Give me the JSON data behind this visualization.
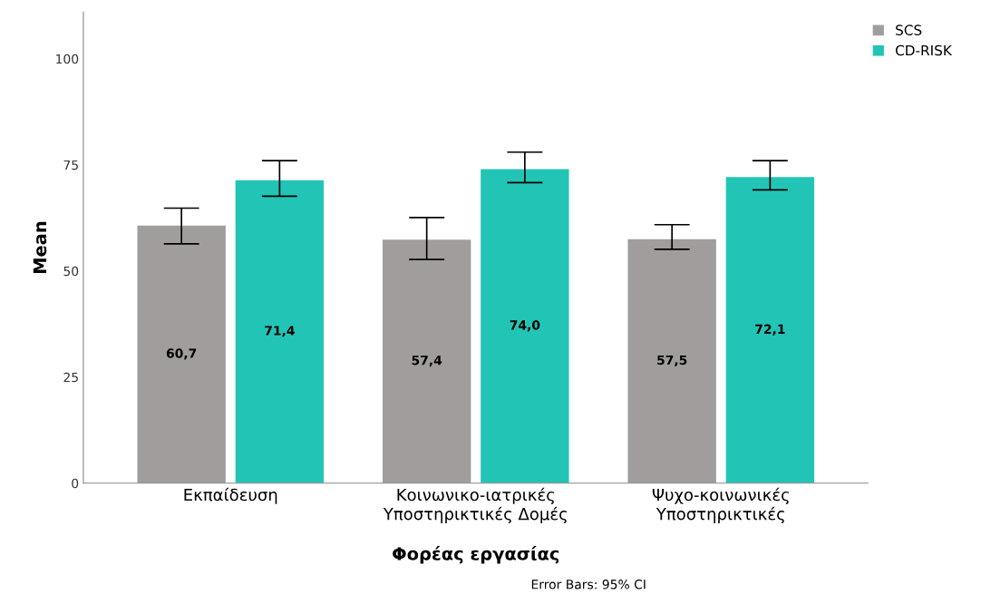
{
  "chart_data": {
    "type": "bar",
    "xlabel": "Φορέας εργασίας",
    "ylabel": "Mean",
    "categories": [
      "Εκπαίδευση",
      "Κοινωνικο-ιατρικές\nΥποστηρικτικές Δομές",
      "Ψυχο-κοινωνικές\nΥποστηρικτικές"
    ],
    "series": [
      {
        "name": "SCS",
        "color": "#a19d9d",
        "values": [
          60.7,
          57.4,
          57.5
        ],
        "value_labels": [
          "60,7",
          "57,4",
          "57,5"
        ],
        "errors": [
          [
            56.4,
            64.8
          ],
          [
            52.7,
            62.6
          ],
          [
            55.1,
            60.9
          ]
        ]
      },
      {
        "name": "CD-RISK",
        "color": "#22c5b5",
        "values": [
          71.4,
          74.0,
          72.1
        ],
        "value_labels": [
          "71,4",
          "74,0",
          "72,1"
        ],
        "errors": [
          [
            67.6,
            76.0
          ],
          [
            70.8,
            78.0
          ],
          [
            69.1,
            76.0
          ]
        ]
      }
    ],
    "ylim": [
      0,
      111
    ],
    "yticks": [
      0,
      25,
      50,
      75,
      100
    ],
    "grid": false,
    "legend": "top right",
    "annotations": [
      "Error Bars: 95% CI"
    ]
  }
}
